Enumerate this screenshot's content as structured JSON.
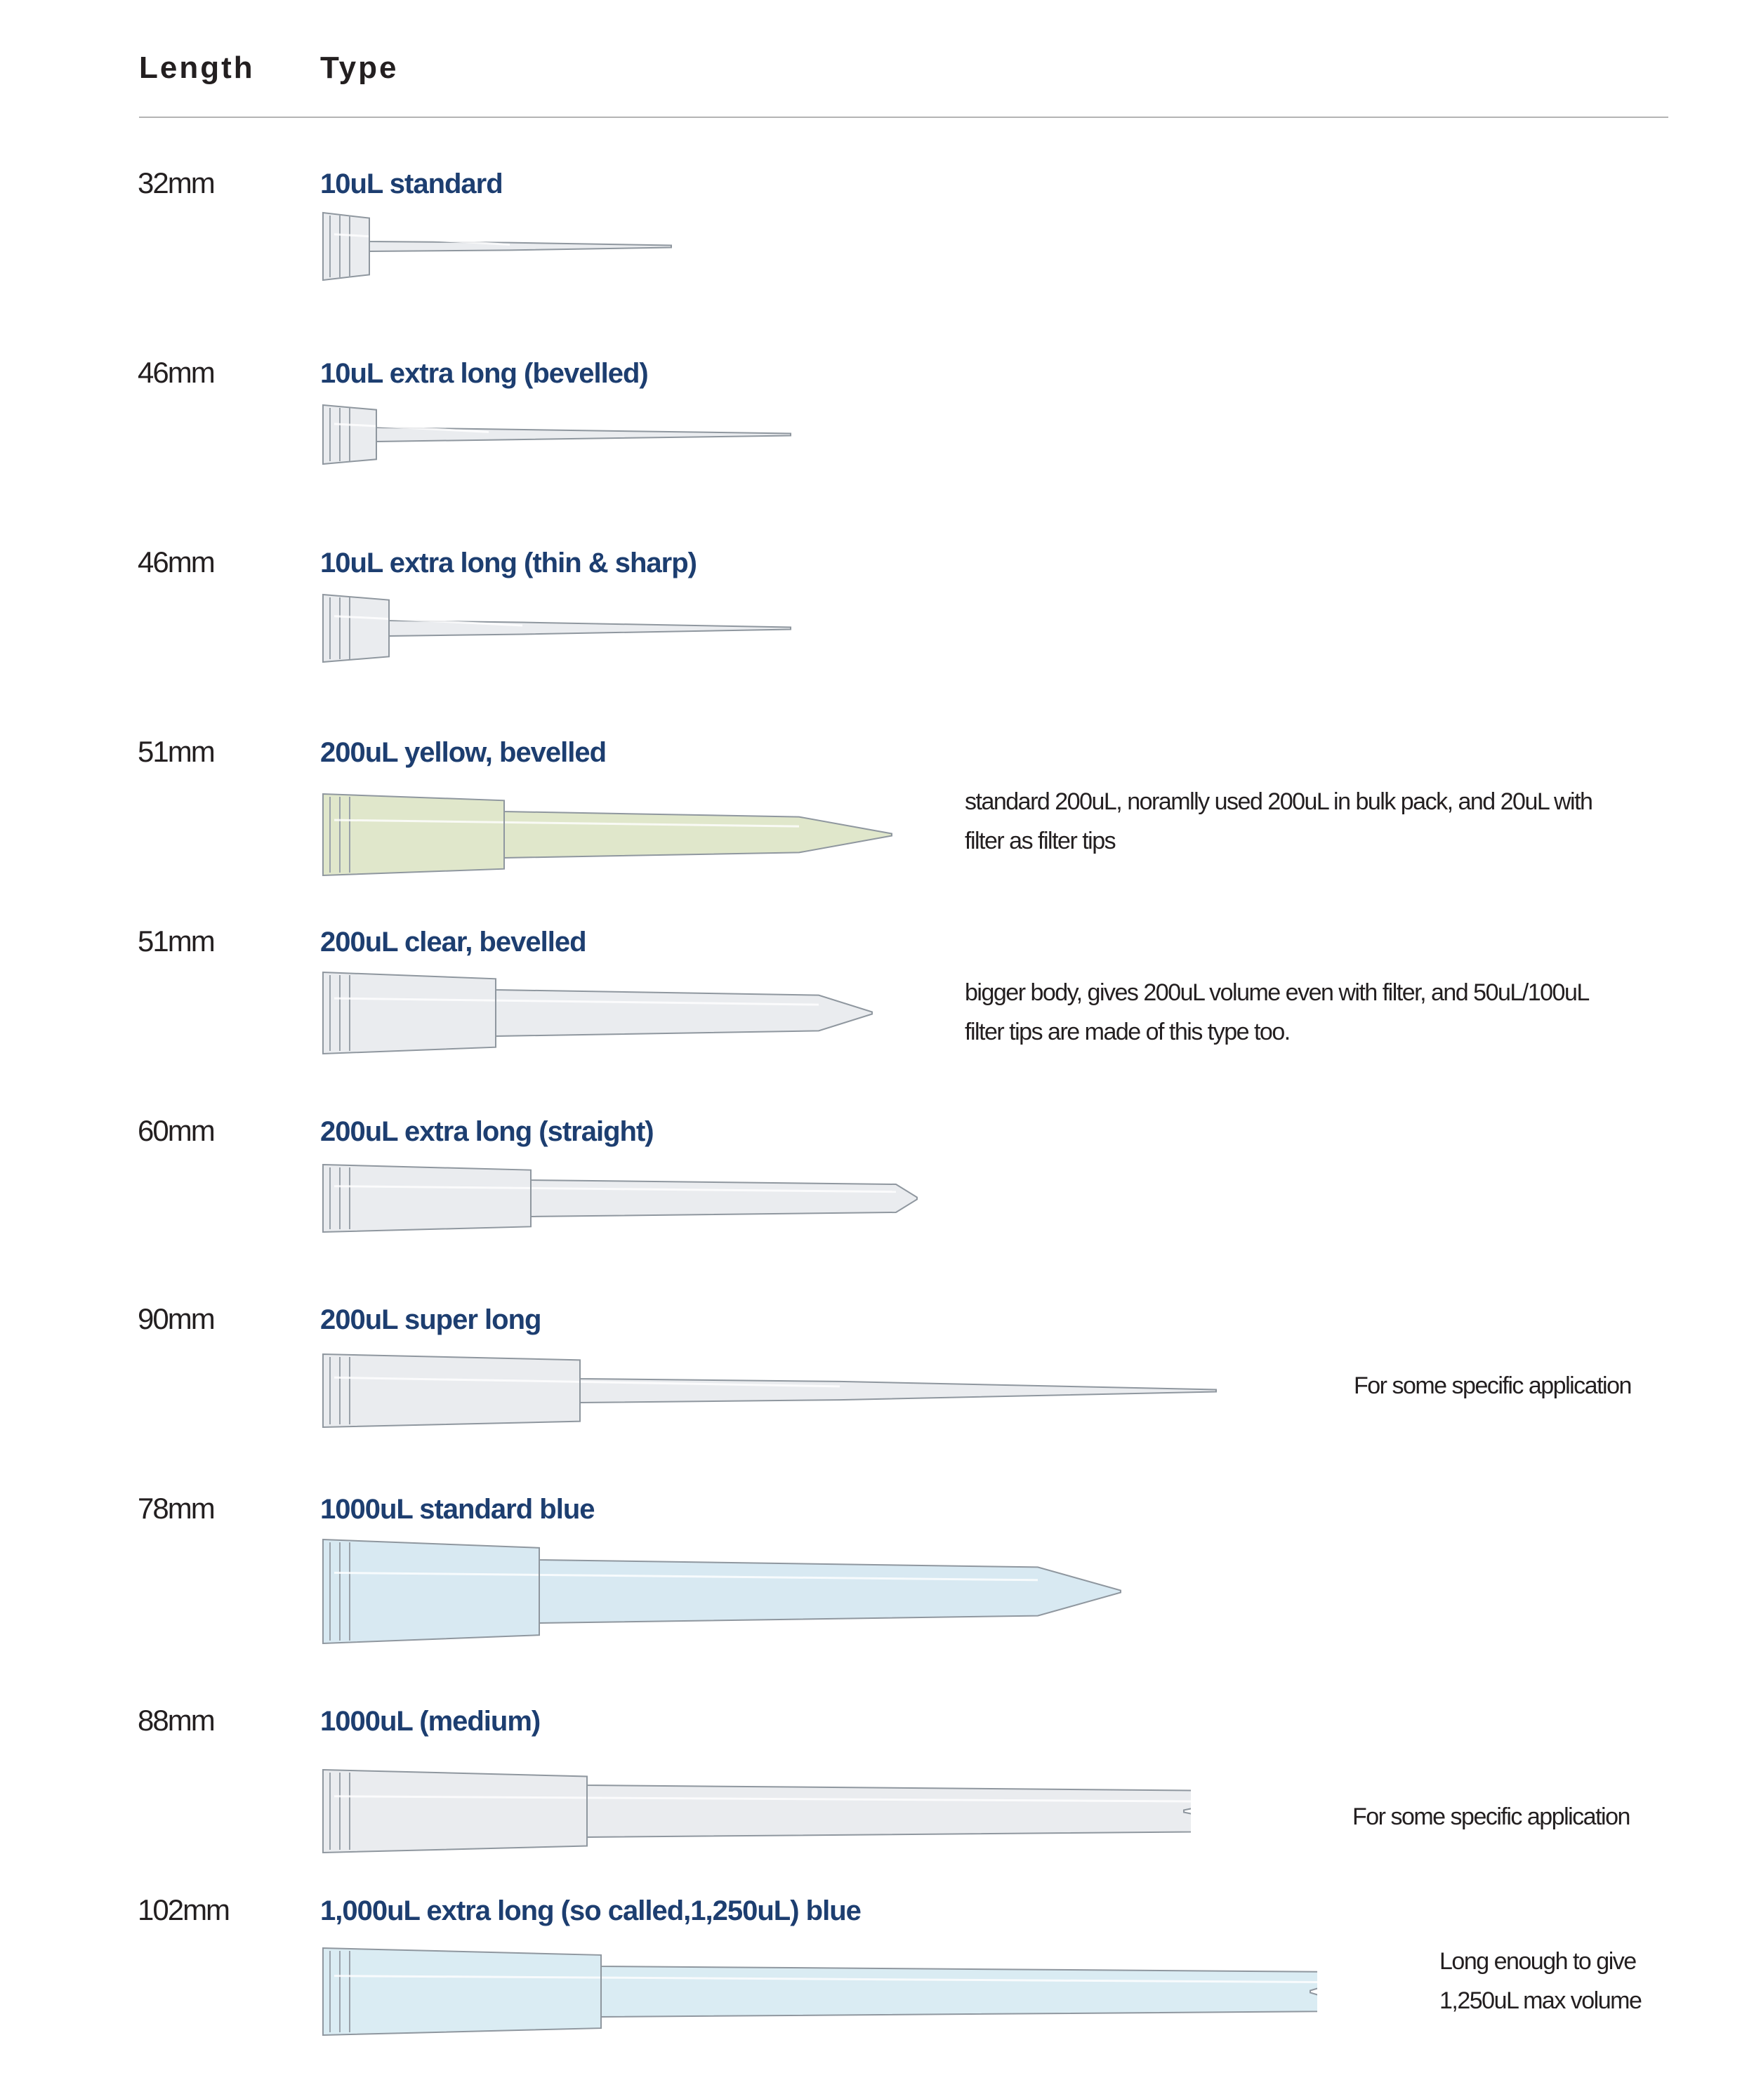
{
  "header": {
    "length_label": "Length",
    "type_label": "Type"
  },
  "rows": [
    {
      "length": "32mm",
      "type": "10uL standard",
      "color": "#d9dde2",
      "notes": []
    },
    {
      "length": "46mm",
      "type": "10uL extra long (bevelled)",
      "color": "#d9dde2",
      "notes": []
    },
    {
      "length": "46mm",
      "type": "10uL extra long (thin & sharp)",
      "color": "#d9dde2",
      "notes": []
    },
    {
      "length": "51mm",
      "type": "200uL yellow, bevelled",
      "color": "#c7d4a0",
      "notes": [
        "standard 200uL, noramlly used 200uL in bulk pack, and 20uL with",
        "filter as filter tips"
      ]
    },
    {
      "length": "51mm",
      "type": "200uL clear, bevelled",
      "color": "#d9dde2",
      "notes": [
        "bigger body, gives 200uL volume even with filter, and 50uL/100uL",
        "filter tips are made of this type too."
      ]
    },
    {
      "length": "60mm",
      "type": "200uL extra long (straight)",
      "color": "#d9dde2",
      "notes": []
    },
    {
      "length": "90mm",
      "type": "200uL super long",
      "color": "#d9dde2",
      "notes": [
        "For some specific application"
      ]
    },
    {
      "length": "78mm",
      "type": "1000uL standard blue",
      "color": "#b8d7e8",
      "notes": []
    },
    {
      "length": "88mm",
      "type": "1000uL (medium)",
      "color": "#d9dde2",
      "notes": [
        "For some specific application"
      ]
    },
    {
      "length": "102mm",
      "type": "1,000uL extra long (so called,1,250uL) blue",
      "color": "#bcdcea",
      "notes": [
        "Long enough to give",
        "1,250uL max volume"
      ]
    }
  ]
}
